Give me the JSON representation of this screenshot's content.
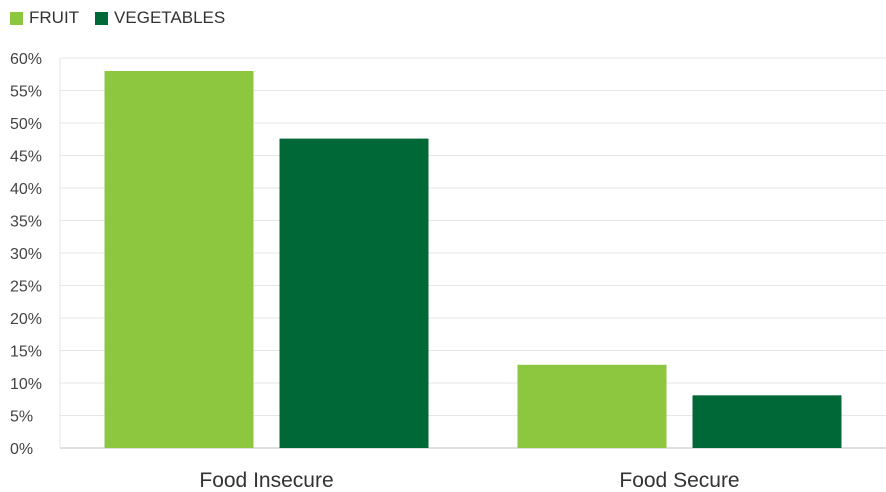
{
  "chart_data": {
    "type": "bar",
    "categories": [
      "Food Insecure",
      "Food Secure"
    ],
    "series": [
      {
        "name": "FRUIT",
        "color": "#8DC63F",
        "values": [
          58,
          12.8
        ]
      },
      {
        "name": "VEGETABLES",
        "color": "#006837",
        "values": [
          47.6,
          8.1
        ]
      }
    ],
    "title": "",
    "xlabel": "",
    "ylabel": "",
    "ylim": [
      0,
      60
    ],
    "yticks": [
      0,
      5,
      10,
      15,
      20,
      25,
      30,
      35,
      40,
      45,
      50,
      55,
      60
    ],
    "ytick_suffix": "%",
    "grid": true,
    "legend_position": "top-left"
  },
  "legend": {
    "items": [
      {
        "label": "FRUIT",
        "color": "#8DC63F"
      },
      {
        "label": "VEGETABLES",
        "color": "#006837"
      }
    ]
  }
}
